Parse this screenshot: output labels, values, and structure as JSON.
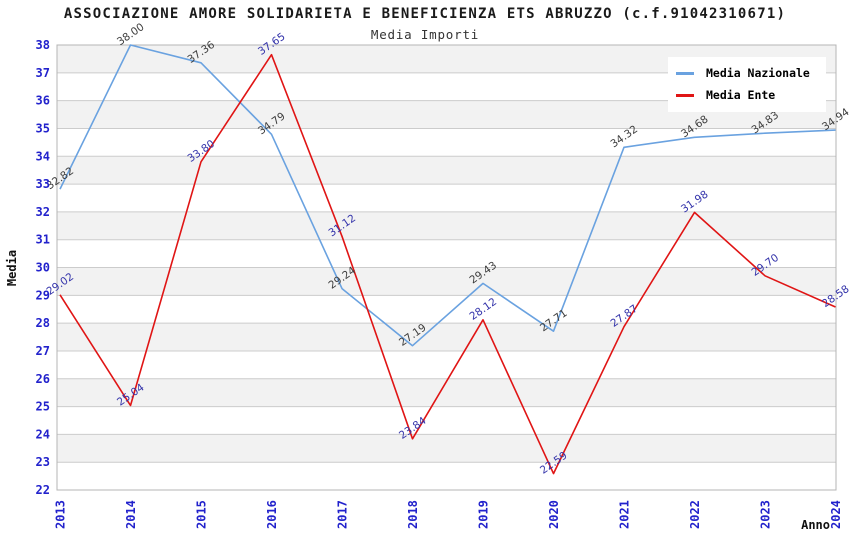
{
  "chart_data": {
    "type": "line",
    "title": "ASSOCIAZIONE AMORE SOLIDARIETA E BENEFICIENZA ETS ABRUZZO (c.f.91042310671)",
    "subtitle": "Media Importi",
    "xlabel": "Anno",
    "ylabel": "Media",
    "categories": [
      "2013",
      "2014",
      "2015",
      "2016",
      "2017",
      "2018",
      "2019",
      "2020",
      "2021",
      "2022",
      "2023",
      "2024"
    ],
    "ylim": [
      22,
      38
    ],
    "ytick_interval": 1,
    "grid": "horizontal gridlines with alternating shaded bands",
    "legend": {
      "position": "top-right"
    },
    "series": [
      {
        "name": "Media Nazionale",
        "color": "#6aa2e0",
        "label_color": "#3d3d3d",
        "values": [
          32.82,
          38.0,
          37.36,
          34.79,
          29.24,
          27.19,
          29.43,
          27.71,
          34.32,
          34.68,
          34.83,
          34.94
        ]
      },
      {
        "name": "Media Ente",
        "color": "#e01515",
        "label_color": "#3333aa",
        "values": [
          29.02,
          25.04,
          33.8,
          37.65,
          31.12,
          23.84,
          28.12,
          22.59,
          27.87,
          31.98,
          29.7,
          28.58
        ]
      }
    ],
    "style_colors": {
      "tick_label": "#2222cc",
      "band_fill": "#f2f2f2",
      "gridline": "#cccccc",
      "plot_border": "#b5b5b5",
      "axis_title": "#111111",
      "subtitle": "#333333"
    }
  }
}
